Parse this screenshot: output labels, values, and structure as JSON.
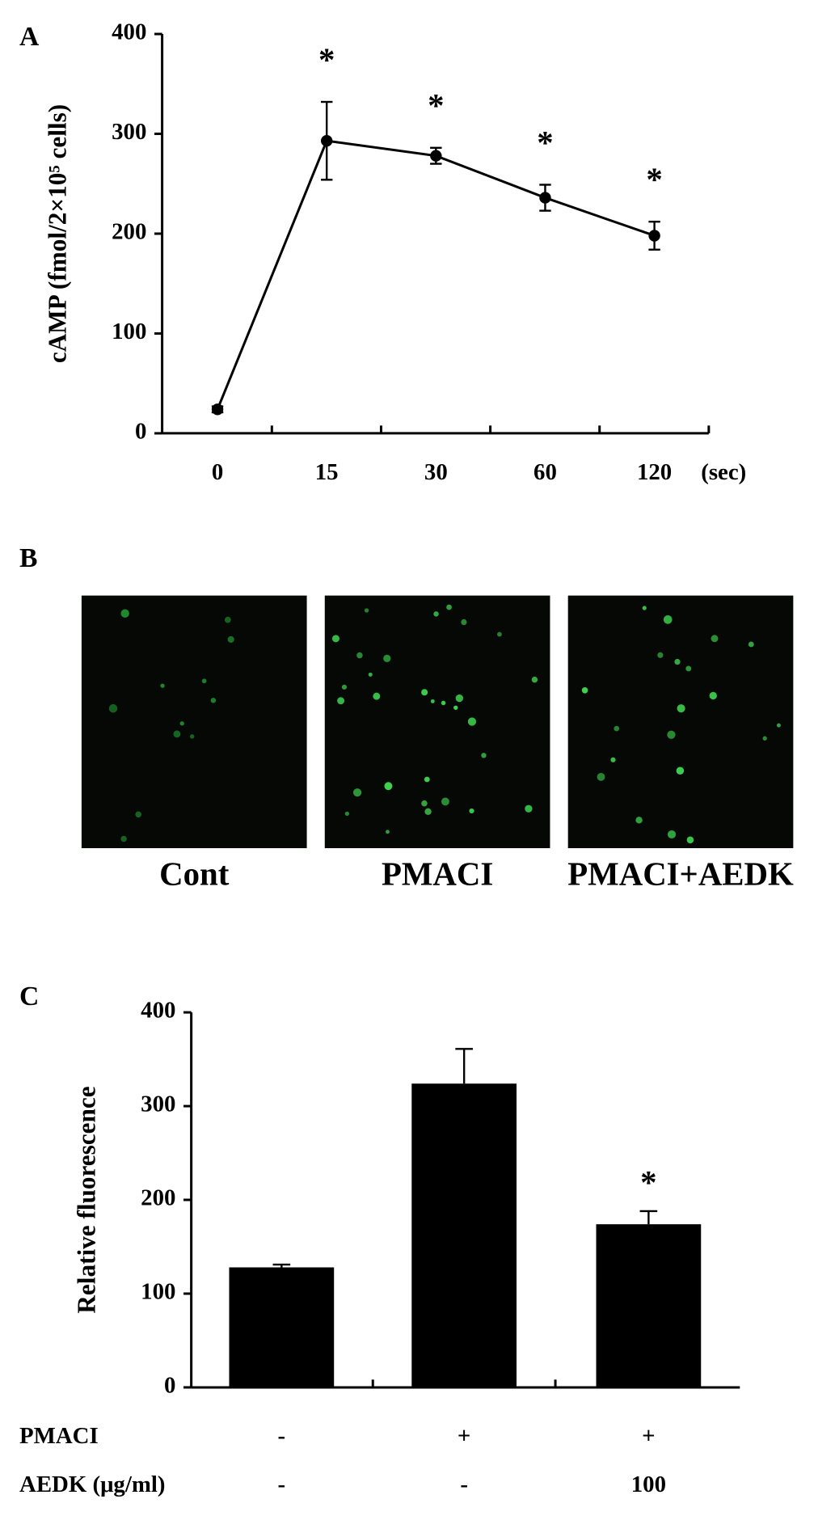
{
  "chart_data": [
    {
      "type": "line",
      "panel": "A",
      "y_label": "cAMP (fmol/2×10⁵ cells)",
      "x_unit": "(sec)",
      "categories": [
        "0",
        "15",
        "30",
        "60",
        "120"
      ],
      "values": [
        24,
        293,
        278,
        236,
        198
      ],
      "errors": [
        3,
        39,
        8,
        13,
        14
      ],
      "value_annotations": [
        null,
        "*",
        "*",
        "*",
        "*"
      ],
      "color": "#000000",
      "ylim": [
        0,
        400
      ],
      "yticks": [
        0,
        100,
        200,
        300,
        400
      ]
    },
    {
      "type": "bar",
      "panel": "C",
      "y_label": "Relative fluorescence",
      "values": [
        128,
        324,
        174
      ],
      "errors": [
        3,
        37,
        14
      ],
      "value_annotations": [
        null,
        null,
        "*"
      ],
      "conditions": [
        {
          "label": "PMACI",
          "values": [
            "-",
            "+",
            "+"
          ]
        },
        {
          "label": "AEDK (μg/ml)",
          "values": [
            "-",
            "-",
            "100"
          ]
        }
      ],
      "color": "#000000",
      "ylim": [
        0,
        400
      ],
      "yticks": [
        0,
        100,
        200,
        300,
        400
      ]
    }
  ],
  "panel_b": {
    "panel": "B",
    "images": [
      "Cont",
      "PMACI",
      "PMACI+AEDK"
    ]
  }
}
